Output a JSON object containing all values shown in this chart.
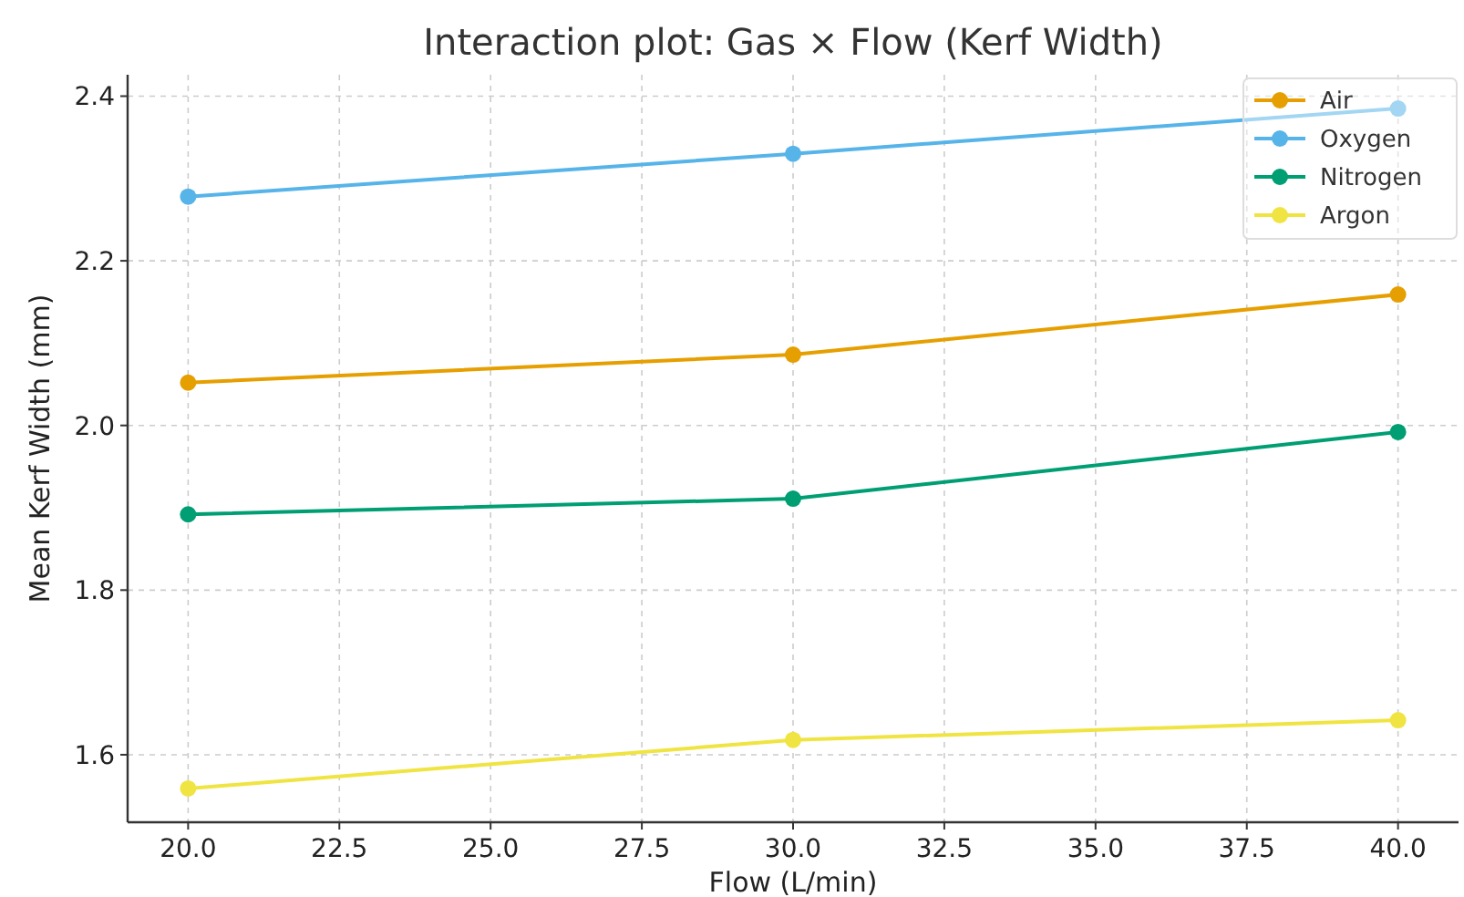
{
  "chart_data": {
    "type": "line",
    "title": "Interaction plot: Gas × Flow (Kerf Width)",
    "xlabel": "Flow (L/min)",
    "ylabel": "Mean Kerf Width (mm)",
    "x": [
      20,
      30,
      40
    ],
    "series": [
      {
        "name": "Air",
        "color": "#e69f00",
        "values": [
          2.052,
          2.086,
          2.159
        ]
      },
      {
        "name": "Oxygen",
        "color": "#56b4e9",
        "values": [
          2.278,
          2.33,
          2.385
        ]
      },
      {
        "name": "Nitrogen",
        "color": "#009e73",
        "values": [
          1.892,
          1.911,
          1.992
        ]
      },
      {
        "name": "Argon",
        "color": "#f0e442",
        "values": [
          1.559,
          1.618,
          1.642
        ]
      }
    ],
    "xlim": [
      19,
      41
    ],
    "xticks": [
      {
        "value": 20,
        "label": "20.0"
      },
      {
        "value": 22.5,
        "label": "22.5"
      },
      {
        "value": 25,
        "label": "25.0"
      },
      {
        "value": 27.5,
        "label": "27.5"
      },
      {
        "value": 30,
        "label": "30.0"
      },
      {
        "value": 32.5,
        "label": "32.5"
      },
      {
        "value": 35,
        "label": "35.0"
      },
      {
        "value": 37.5,
        "label": "37.5"
      },
      {
        "value": 40,
        "label": "40.0"
      }
    ],
    "ylim": [
      1.518,
      2.426
    ],
    "yticks": [
      {
        "value": 1.6,
        "label": "1.6"
      },
      {
        "value": 1.8,
        "label": "1.8"
      },
      {
        "value": 2,
        "label": "2.0"
      },
      {
        "value": 2.2,
        "label": "2.2"
      },
      {
        "value": 2.4,
        "label": "2.4"
      }
    ],
    "grid": true,
    "legend": "top right",
    "marker": "circle",
    "line_style": "solid"
  }
}
